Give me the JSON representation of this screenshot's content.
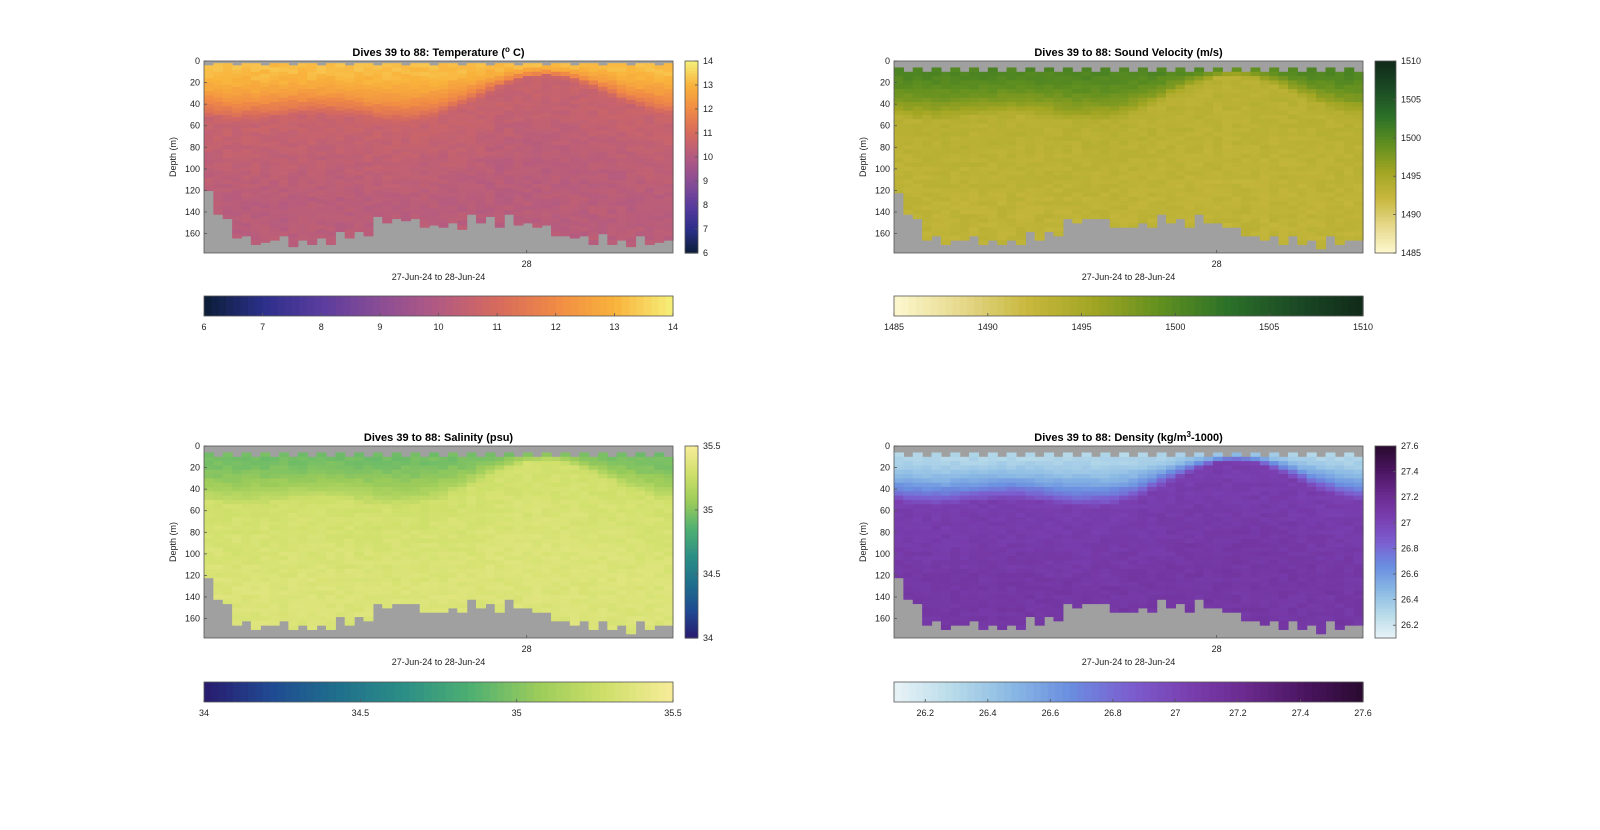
{
  "figure": {
    "background": "#ffffff",
    "nodata_color": "#a0a0a0"
  },
  "chart_data": [
    {
      "type": "heatmap",
      "title_parts": [
        "Dives 39 to 88: Temperature (",
        "o",
        " C)"
      ],
      "title_style": "sup",
      "xlabel": "27-Jun-24 to 28-Jun-24",
      "ylabel": "Depth (m)",
      "x_ticks": [
        "28"
      ],
      "y_ticks": [
        0,
        20,
        40,
        60,
        80,
        100,
        120,
        140,
        160
      ],
      "ylim": [
        0,
        178
      ],
      "dives": [
        39,
        88
      ],
      "clim": [
        6,
        14
      ],
      "colorbar_ticks": [
        "6",
        "7",
        "8",
        "9",
        "10",
        "11",
        "12",
        "13",
        "14"
      ],
      "colorbar_ticks_values": [
        6,
        7,
        8,
        9,
        10,
        11,
        12,
        13,
        14
      ],
      "colormap": [
        "#0b1d36",
        "#2b2f8a",
        "#5a3c9e",
        "#8a4d95",
        "#b25a82",
        "#d66a5e",
        "#f08a45",
        "#f9b23b",
        "#f5f07a"
      ],
      "profile": {
        "surface": 13.2,
        "mid": 10.6,
        "deep": 10.2
      },
      "sparse_top": false
    },
    {
      "type": "heatmap",
      "title_parts": [
        "Dives 39 to 88: Sound Velocity (m/s)"
      ],
      "title_style": "plain",
      "xlabel": "27-Jun-24 to 28-Jun-24",
      "ylabel": "Depth (m)",
      "x_ticks": [
        "28"
      ],
      "y_ticks": [
        0,
        20,
        40,
        60,
        80,
        100,
        120,
        140,
        160
      ],
      "ylim": [
        0,
        178
      ],
      "dives": [
        39,
        88
      ],
      "clim": [
        1485,
        1510
      ],
      "colorbar_ticks": [
        "1485",
        "1490",
        "1495",
        "1500",
        "1505",
        "1510"
      ],
      "colorbar_ticks_values": [
        1485,
        1490,
        1495,
        1500,
        1505,
        1510
      ],
      "colormap": [
        "#fdf8d0",
        "#e6d98c",
        "#c8b83e",
        "#a0a522",
        "#5f8f20",
        "#2b7028",
        "#1b4a25",
        "#112a19"
      ],
      "profile": {
        "surface": 1500.5,
        "mid": 1493.6,
        "deep": 1493.0
      },
      "sparse_top": true
    },
    {
      "type": "heatmap",
      "title_parts": [
        "Dives 39 to 88: Salinity (psu)"
      ],
      "title_style": "plain",
      "xlabel": "27-Jun-24 to 28-Jun-24",
      "ylabel": "Depth (m)",
      "x_ticks": [
        "28"
      ],
      "y_ticks": [
        0,
        20,
        40,
        60,
        80,
        100,
        120,
        140,
        160
      ],
      "ylim": [
        0,
        178
      ],
      "dives": [
        39,
        88
      ],
      "clim": [
        34,
        35.5
      ],
      "colorbar_ticks": [
        "34",
        "34.5",
        "35",
        "35.5"
      ],
      "colorbar_ticks_values": [
        34,
        34.5,
        35,
        35.5
      ],
      "colormap": [
        "#2a1a6e",
        "#1f4a92",
        "#1f6f8c",
        "#2c8f85",
        "#4fb071",
        "#9ccc5a",
        "#cfe06a",
        "#f7ec9a"
      ],
      "profile": {
        "surface": 34.95,
        "mid": 35.3,
        "deep": 35.35
      },
      "sparse_top": true
    },
    {
      "type": "heatmap",
      "title_parts": [
        "Dives 39 to 88: Density (kg/m",
        "3",
        "-1000)"
      ],
      "title_style": "sup",
      "xlabel": "27-Jun-24 to 28-Jun-24",
      "ylabel": "Depth (m)",
      "x_ticks": [
        "28"
      ],
      "y_ticks": [
        0,
        20,
        40,
        60,
        80,
        100,
        120,
        140,
        160
      ],
      "ylim": [
        0,
        178
      ],
      "dives": [
        39,
        88
      ],
      "clim": [
        26.1,
        27.6
      ],
      "colorbar_ticks": [
        "26.2",
        "26.4",
        "26.6",
        "26.8",
        "27",
        "27.2",
        "27.4",
        "27.6"
      ],
      "colorbar_ticks_values": [
        26.2,
        26.4,
        26.6,
        26.8,
        27.0,
        27.2,
        27.4,
        27.6
      ],
      "colormap": [
        "#eaf4f8",
        "#b8dbe9",
        "#8ab9e4",
        "#6a8ee0",
        "#7b5fd0",
        "#7a3fb0",
        "#6a2a8e",
        "#4a1560",
        "#2a0a30"
      ],
      "profile": {
        "surface": 26.3,
        "mid": 27.05,
        "deep": 27.1
      },
      "sparse_top": true
    }
  ]
}
